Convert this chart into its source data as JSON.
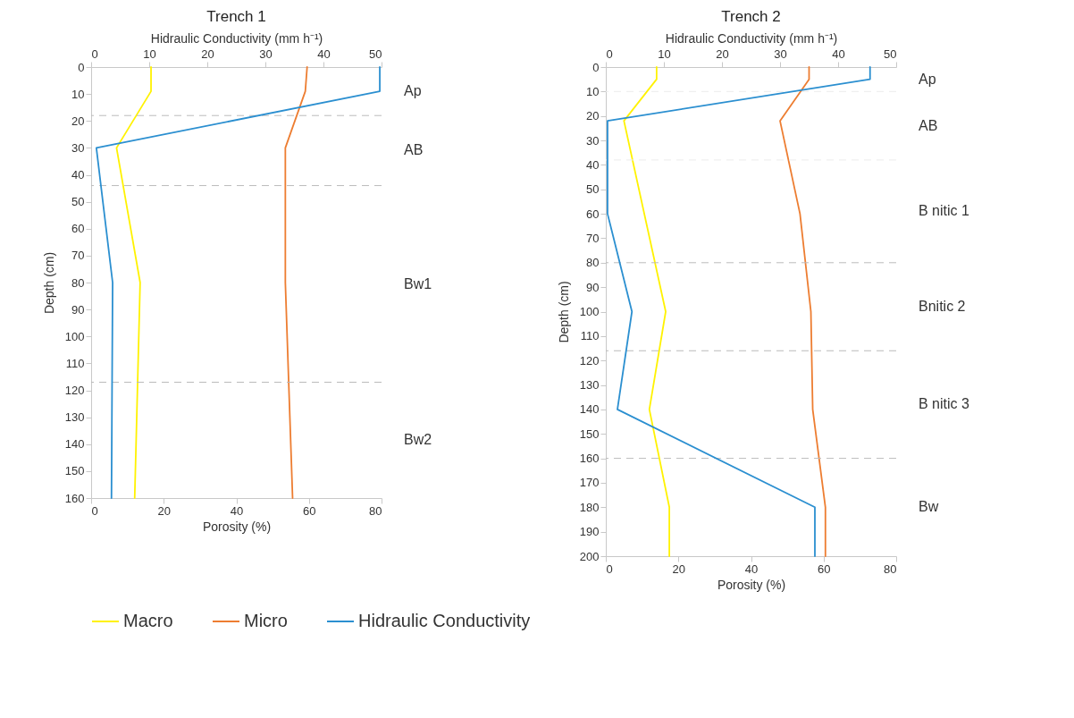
{
  "chart_data": [
    {
      "type": "line",
      "title": "Trench 1",
      "xlabel": "Porosity (%)",
      "x2label": "Hidraulic Conductivity (mm h⁻¹)",
      "ylabel": "Depth (cm)",
      "xlim": [
        0,
        80
      ],
      "xticks": [
        0,
        20,
        40,
        60,
        80
      ],
      "x2lim": [
        0,
        50
      ],
      "x2ticks": [
        0,
        10,
        20,
        30,
        40,
        50
      ],
      "ylim": [
        160,
        0
      ],
      "yticks": [
        0,
        10,
        20,
        30,
        40,
        50,
        60,
        70,
        80,
        90,
        100,
        110,
        120,
        130,
        140,
        150,
        160
      ],
      "legend": "bottom",
      "series": [
        {
          "name": "Macro",
          "color": "#fff200",
          "x": [
            16.5,
            16.5,
            7,
            13.5,
            12
          ],
          "values": [
            0,
            9,
            30,
            80,
            160
          ]
        },
        {
          "name": "Micro",
          "color": "#ed7d31",
          "x": [
            59.5,
            59,
            53.5,
            53.5,
            55.5
          ],
          "values": [
            0,
            9,
            30,
            80,
            160
          ]
        },
        {
          "name": "Hidraulic Conductivity",
          "color": "#2b8fd0",
          "axis": "x2",
          "x": [
            49.7,
            49.7,
            0.9,
            3.7,
            3.5
          ],
          "values": [
            0,
            9,
            30,
            80,
            160
          ]
        }
      ],
      "ref_lines": [
        {
          "axis": "y",
          "value": 18,
          "color": "#bbbbbb",
          "line_style": "dashed"
        },
        {
          "axis": "y",
          "value": 44,
          "color": "#bbbbbb",
          "line_style": "dashed"
        },
        {
          "axis": "y",
          "value": 117,
          "color": "#bbbbbb",
          "line_style": "dashed"
        }
      ],
      "annotations": [
        "Ap",
        "AB",
        "Bw1",
        "Bw2"
      ]
    },
    {
      "type": "line",
      "title": "Trench 2",
      "xlabel": "Porosity (%)",
      "x2label": "Hidraulic Conductivity (mm h⁻¹)",
      "ylabel": "Depth (cm)",
      "xlim": [
        0,
        80
      ],
      "xticks": [
        0,
        20,
        40,
        60,
        80
      ],
      "x2lim": [
        0,
        50
      ],
      "x2ticks": [
        0,
        10,
        20,
        30,
        40,
        50
      ],
      "ylim": [
        200,
        0
      ],
      "yticks": [
        0,
        10,
        20,
        30,
        40,
        50,
        60,
        70,
        80,
        90,
        100,
        110,
        120,
        130,
        140,
        150,
        160,
        170,
        180,
        190,
        200
      ],
      "legend": "bottom",
      "series": [
        {
          "name": "Macro",
          "color": "#fff200",
          "x": [
            14,
            14,
            5,
            16.5,
            12,
            17.5,
            17.5
          ],
          "values": [
            0,
            5,
            22,
            100,
            140,
            180,
            200
          ]
        },
        {
          "name": "Micro",
          "color": "#ed7d31",
          "x": [
            56,
            56,
            48,
            53.5,
            56.5,
            57,
            60.5,
            60.5
          ],
          "values": [
            0,
            5,
            22,
            60,
            100,
            140,
            180,
            200
          ]
        },
        {
          "name": "Hidraulic Conductivity",
          "color": "#2b8fd0",
          "axis": "x2",
          "x": [
            45.5,
            45.5,
            0.3,
            0.3,
            4.5,
            2,
            36,
            36
          ],
          "values": [
            0,
            5,
            22,
            60,
            100,
            140,
            180,
            200
          ]
        }
      ],
      "ref_lines": [
        {
          "axis": "y",
          "value": 10,
          "color": "#ececec",
          "line_style": "dashed"
        },
        {
          "axis": "y",
          "value": 38,
          "color": "#ececec",
          "line_style": "dashed"
        },
        {
          "axis": "y",
          "value": 80,
          "color": "#bbbbbb",
          "line_style": "dashed"
        },
        {
          "axis": "y",
          "value": 116,
          "color": "#bbbbbb",
          "line_style": "dashed"
        },
        {
          "axis": "y",
          "value": 160,
          "color": "#bbbbbb",
          "line_style": "dashed"
        }
      ],
      "annotations": [
        "Ap",
        "AB",
        "B nitic  1",
        "Bnitic 2",
        "B nitic 3",
        "Bw"
      ]
    }
  ]
}
